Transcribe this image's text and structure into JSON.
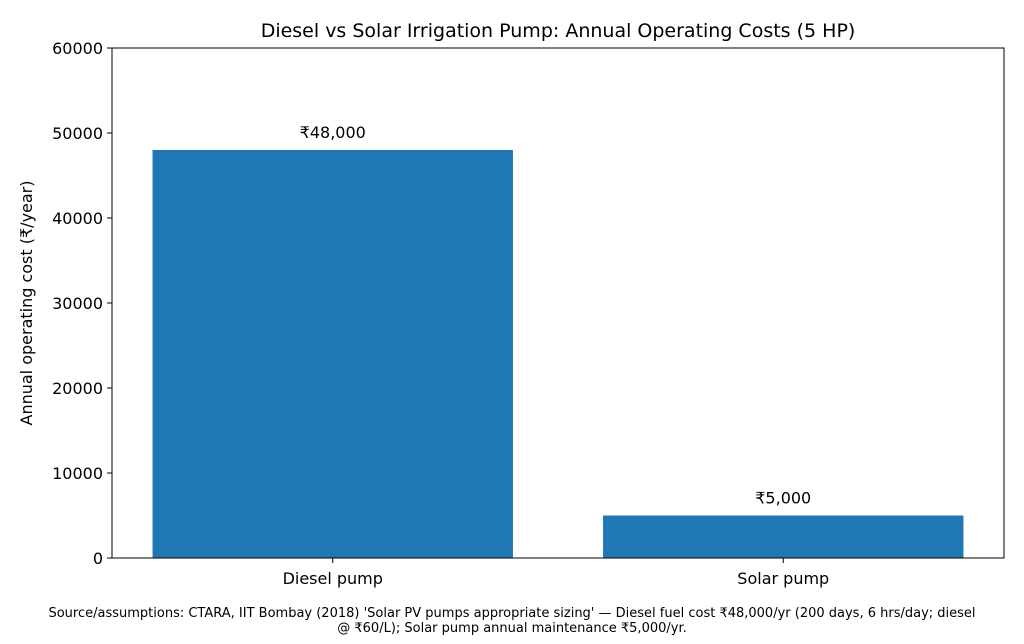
{
  "chart_data": {
    "type": "bar",
    "title": "Diesel vs Solar Irrigation Pump: Annual Operating Costs (5 HP)",
    "xlabel": "",
    "ylabel": "Annual operating cost (₹/year)",
    "categories": [
      "Diesel pump",
      "Solar pump"
    ],
    "values": [
      48000,
      5000
    ],
    "data_labels": [
      "₹48,000",
      "₹5,000"
    ],
    "ylim": [
      0,
      60000
    ],
    "yticks": [
      0,
      10000,
      20000,
      30000,
      40000,
      50000,
      60000
    ],
    "ytick_labels": [
      "0",
      "10000",
      "20000",
      "30000",
      "40000",
      "50000",
      "60000"
    ],
    "grid": false,
    "bar_color": "#1f77b4",
    "footnote_lines": [
      "Source/assumptions: CTARA, IIT Bombay (2018) 'Solar PV pumps appropriate sizing' — Diesel fuel cost ₹48,000/yr (200 days, 6 hrs/day; diesel",
      "@ ₹60/L); Solar pump annual maintenance ₹5,000/yr."
    ]
  }
}
